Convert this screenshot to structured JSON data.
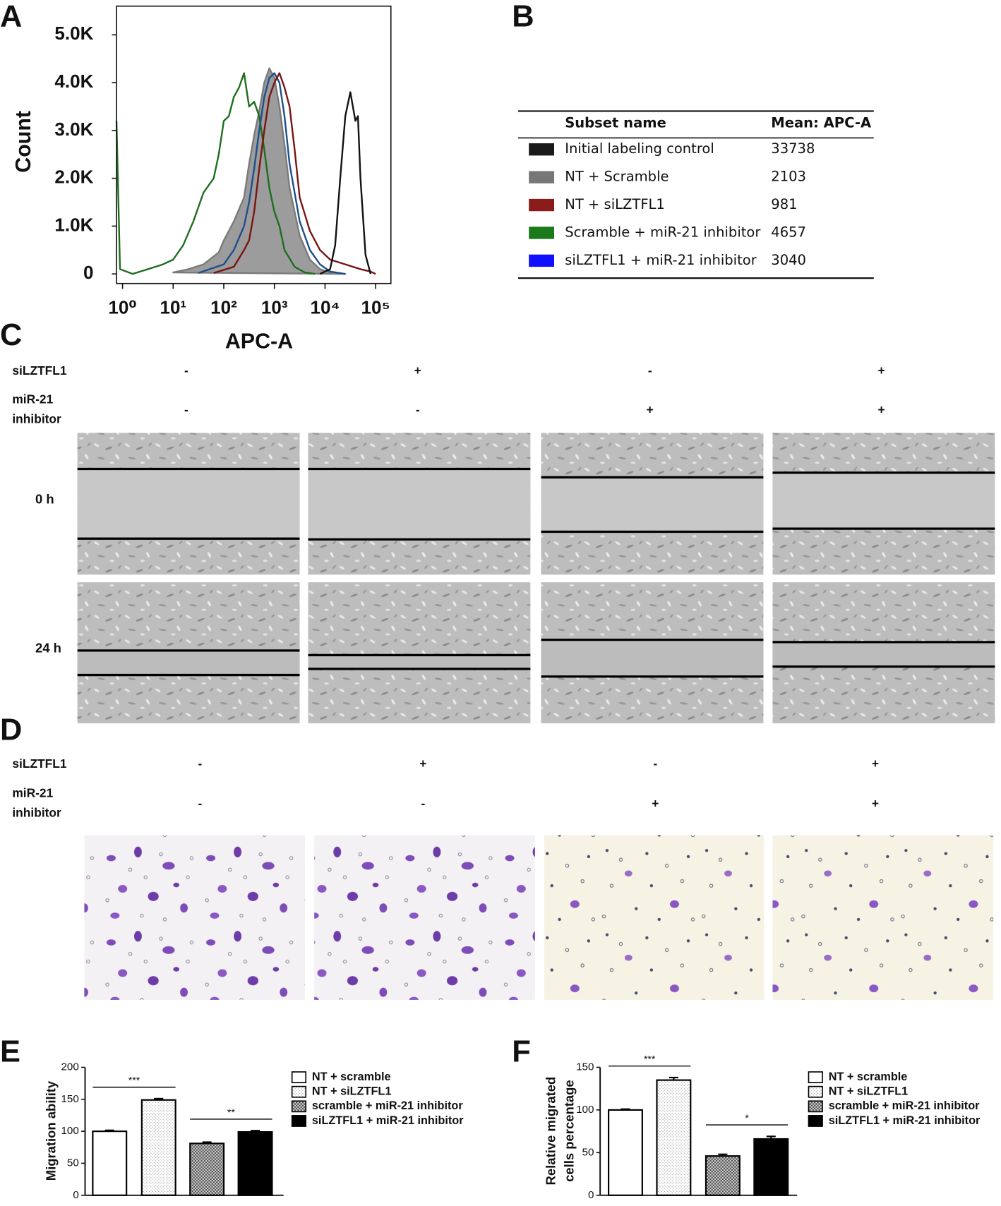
{
  "panel_labels": [
    "A",
    "B",
    "C",
    "D",
    "E",
    "F"
  ],
  "chart_data": [
    {
      "type": "line",
      "x_label": "APC-A",
      "y_label": "Count",
      "xscale": "log",
      "xlim": [
        0.76,
        200000
      ],
      "ylim": [
        -200,
        5600
      ],
      "xticks": [
        {
          "value": 1,
          "label": "10⁰"
        },
        {
          "value": 10,
          "label": "10¹"
        },
        {
          "value": 100,
          "label": "10²"
        },
        {
          "value": 1000,
          "label": "10³"
        },
        {
          "value": 10000,
          "label": "10⁴"
        },
        {
          "value": 100000,
          "label": "10⁵"
        }
      ],
      "yticks": [
        0,
        {
          "value": 1000,
          "label": "1.0K"
        },
        {
          "value": 2000,
          "label": "2.0K"
        },
        {
          "value": 3000,
          "label": "3.0K"
        },
        {
          "value": 4000,
          "label": "4.0K"
        },
        {
          "value": 5000,
          "label": "5.0K"
        }
      ],
      "series": [
        {
          "color": "#7a7a7a",
          "fill": "#9c9c9c",
          "x": [
            10,
            20,
            39.8,
            79.4,
            100,
            126,
            158,
            251,
            316,
            398,
            501,
            631,
            794,
            1000,
            1259,
            1585,
            1995,
            3162,
            5012,
            7943,
            12589,
            25119
          ],
          "values": [
            30,
            100,
            200,
            450,
            700,
            900,
            1100,
            1600,
            2300,
            2900,
            3400,
            4000,
            4300,
            4100,
            3500,
            2700,
            1800,
            800,
            300,
            100,
            30,
            0
          ]
        },
        {
          "color": "#1e6e1e",
          "fill": null,
          "x": [
            0.76,
            0.891,
            1.58,
            3.16,
            6.31,
            10,
            15.8,
            25.1,
            39.8,
            63.1,
            79.4,
            100,
            126,
            158,
            200,
            251,
            316,
            398,
            501,
            631,
            794,
            1000,
            1259,
            1585,
            2512,
            3981,
            6310
          ],
          "values": [
            3200,
            100,
            0,
            100,
            200,
            300,
            600,
            1100,
            1700,
            2000,
            2500,
            3200,
            3300,
            3700,
            3900,
            4200,
            3500,
            3600,
            3300,
            2600,
            1800,
            1300,
            1000,
            500,
            150,
            30,
            0
          ]
        },
        {
          "color": "#1d4f8a",
          "fill": null,
          "x": [
            31.6,
            100,
            158,
            251,
            316,
            398,
            501,
            631,
            794,
            1000,
            1259,
            1585,
            1995,
            3162,
            5012,
            7943,
            12589,
            25119
          ],
          "values": [
            20,
            200,
            500,
            1000,
            1500,
            2200,
            3000,
            3700,
            4100,
            4200,
            4000,
            3300,
            2300,
            1100,
            500,
            200,
            50,
            0
          ]
        },
        {
          "color": "#7a1414",
          "fill": null,
          "x": [
            63.1,
            158,
            251,
            316,
            398,
            501,
            631,
            794,
            1000,
            1259,
            1585,
            1995,
            2512,
            3162,
            5012,
            7943,
            12589,
            25119,
            50119,
            79433,
            100000
          ],
          "values": [
            20,
            150,
            500,
            700,
            1300,
            2200,
            3000,
            3700,
            4000,
            4200,
            3900,
            3500,
            2600,
            1600,
            900,
            500,
            300,
            200,
            100,
            50,
            0
          ]
        },
        {
          "color": "#111111",
          "fill": null,
          "x": [
            7943,
            12589,
            15849,
            19953,
            25119,
            31623,
            39811,
            44668,
            50119,
            63096,
            79433
          ],
          "values": [
            0,
            100,
            600,
            2000,
            3300,
            3800,
            3200,
            3300,
            2000,
            400,
            0
          ]
        }
      ]
    },
    {
      "type": "bar",
      "y_label": "Migration ability",
      "ylim": [
        0,
        200
      ],
      "yticks": [
        0,
        50,
        100,
        150,
        200
      ],
      "series": [
        {
          "name": "NT + scramble",
          "pattern": "open",
          "values": [
            100
          ],
          "errors": [
            1.5
          ]
        },
        {
          "name": "NT + siLZTFL1",
          "pattern": "dotted",
          "values": [
            149
          ],
          "errors": [
            2
          ]
        },
        {
          "name": "scramble + miR-21 inhibitor",
          "pattern": "checkered",
          "values": [
            81
          ],
          "errors": [
            2
          ]
        },
        {
          "name": "siLZTFL1 + miR-21 inhibitor",
          "pattern": "solid",
          "values": [
            99
          ],
          "errors": [
            2
          ]
        }
      ],
      "annotations": [
        "***",
        "**"
      ]
    },
    {
      "type": "bar",
      "y_label": [
        "Relative migrated",
        "cells percentage"
      ],
      "ylim": [
        0,
        150
      ],
      "yticks": [
        0,
        50,
        100,
        150
      ],
      "series": [
        {
          "name": "NT + scramble",
          "pattern": "open",
          "values": [
            100
          ],
          "errors": [
            1
          ]
        },
        {
          "name": "NT + siLZTFL1",
          "pattern": "dotted",
          "values": [
            135
          ],
          "errors": [
            3
          ]
        },
        {
          "name": "scramble + miR-21 inhibitor",
          "pattern": "checkered",
          "values": [
            46
          ],
          "errors": [
            2
          ]
        },
        {
          "name": "siLZTFL1 + miR-21 inhibitor",
          "pattern": "solid",
          "values": [
            66
          ],
          "errors": [
            3
          ]
        }
      ],
      "annotations": [
        "***",
        "*"
      ]
    }
  ],
  "table": {
    "header": [
      "Subset name",
      "Mean: APC-A"
    ],
    "rows": [
      {
        "name": "Initial labeling control",
        "mean": 33738,
        "color": "#1a1a1a"
      },
      {
        "name": "NT + Scramble",
        "mean": 2103,
        "color": "#777777"
      },
      {
        "name": "NT + siLZTFL1",
        "mean": 981,
        "color": "#8b1a1a"
      },
      {
        "name": "Scramble + miR-21 inhibitor",
        "mean": 4657,
        "color": "#1a7a1a"
      },
      {
        "name": "siLZTFL1 + miR-21 inhibitor",
        "mean": 3040,
        "color": "#1010ff"
      }
    ]
  },
  "wound_healing": {
    "conditions": [
      {
        "label": [
          "siLZTFL1"
        ],
        "signs": [
          "-",
          "+",
          "-",
          "+"
        ]
      },
      {
        "label": [
          "miR-21",
          "inhibitor"
        ],
        "signs": [
          "-",
          "-",
          "+",
          "+"
        ]
      }
    ],
    "timepoints": [
      "0 h",
      "24 h"
    ]
  },
  "transwell": {
    "conditions": [
      {
        "label": [
          "siLZTFL1"
        ],
        "signs": [
          "-",
          "+",
          "-",
          "+"
        ]
      },
      {
        "label": [
          "miR-21",
          "inhibitor"
        ],
        "signs": [
          "-",
          "-",
          "+",
          "+"
        ]
      }
    ]
  }
}
